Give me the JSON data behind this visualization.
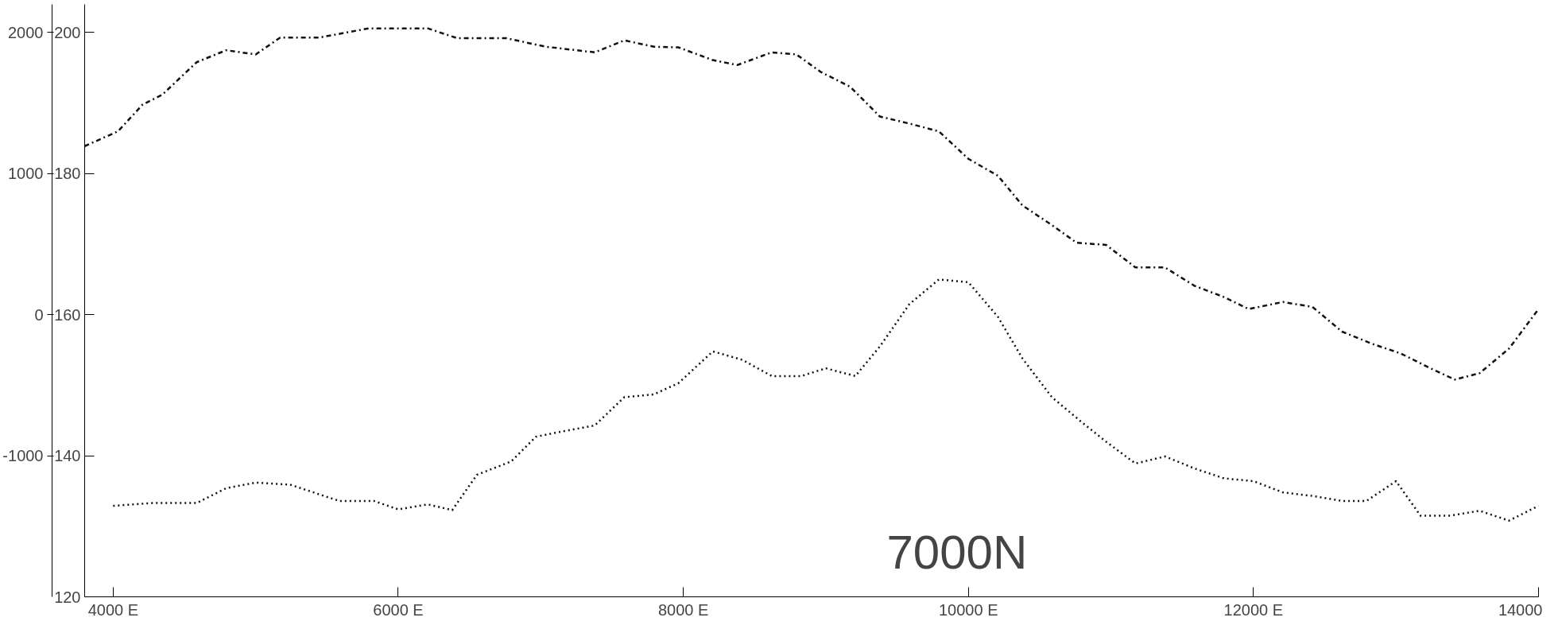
{
  "chart_data": {
    "type": "line",
    "annotations": [
      "7000N"
    ],
    "xlim": [
      3800,
      14000
    ],
    "xticks": [
      {
        "value": 4000,
        "label": "4000 E"
      },
      {
        "value": 6000,
        "label": "6000 E"
      },
      {
        "value": 8000,
        "label": "8000 E"
      },
      {
        "value": 10000,
        "label": "10000 E"
      },
      {
        "value": 12000,
        "label": "12000 E"
      },
      {
        "value": 14000,
        "label": "14000"
      }
    ],
    "ylim": [
      120,
      204
    ],
    "yticks": [
      120,
      140,
      160,
      180,
      200
    ],
    "y2lim": [
      -2000,
      2200
    ],
    "y2ticks": [
      -1000,
      0,
      1000,
      2000
    ],
    "grid": false,
    "marker": "none",
    "series": [
      {
        "color": "#111111",
        "line_style": "dashed",
        "x": [
          3800,
          4034,
          4207,
          4345,
          4586,
          4793,
          5000,
          5172,
          5448,
          5793,
          6207,
          6414,
          6759,
          7034,
          7379,
          7586,
          7793,
          7966,
          8207,
          8379,
          8621,
          8793,
          8966,
          9172,
          9379,
          9586,
          9793,
          10000,
          10207,
          10379,
          10586,
          10759,
          10966,
          11172,
          11379,
          11586,
          11793,
          11966,
          12207,
          12414,
          12621,
          12828,
          13034,
          13241,
          13414,
          13586,
          13793,
          14000
        ],
        "values": [
          183.9,
          186.0,
          189.8,
          191.2,
          195.8,
          197.5,
          196.9,
          199.3,
          199.3,
          200.6,
          200.6,
          199.2,
          199.2,
          198.0,
          197.2,
          198.9,
          198.0,
          197.9,
          196.1,
          195.4,
          197.2,
          196.9,
          194.4,
          192.3,
          188.1,
          187.1,
          186.0,
          182.1,
          179.7,
          175.5,
          172.7,
          170.2,
          169.9,
          166.7,
          166.7,
          164.1,
          162.5,
          160.8,
          161.8,
          161.1,
          157.6,
          155.9,
          154.5,
          152.4,
          150.8,
          151.7,
          155.2,
          160.8
        ]
      },
      {
        "color": "#111111",
        "line_style": "dotted",
        "x": [
          4000,
          4276,
          4586,
          4793,
          5000,
          5241,
          5586,
          5828,
          6000,
          6207,
          6379,
          6552,
          6793,
          6966,
          7138,
          7379,
          7586,
          7793,
          7966,
          8207,
          8414,
          8621,
          8828,
          9000,
          9207,
          9379,
          9586,
          9793,
          10000,
          10207,
          10379,
          10586,
          10793,
          10966,
          11172,
          11379,
          11586,
          11793,
          12000,
          12207,
          12414,
          12621,
          12793,
          13000,
          13172,
          13379,
          13586,
          13793,
          14000
        ],
        "values": [
          132.9,
          133.3,
          133.3,
          135.4,
          136.2,
          135.9,
          133.6,
          133.6,
          132.4,
          133.1,
          132.3,
          137.3,
          139.2,
          142.7,
          143.4,
          144.3,
          148.3,
          148.7,
          150.3,
          154.8,
          153.6,
          151.3,
          151.3,
          152.4,
          151.3,
          155.5,
          161.5,
          165.0,
          164.6,
          159.7,
          153.8,
          148.3,
          144.8,
          142.0,
          138.9,
          139.9,
          138.2,
          136.8,
          136.4,
          134.8,
          134.3,
          133.6,
          133.6,
          136.4,
          131.5,
          131.5,
          132.2,
          130.8,
          132.9
        ]
      }
    ]
  }
}
